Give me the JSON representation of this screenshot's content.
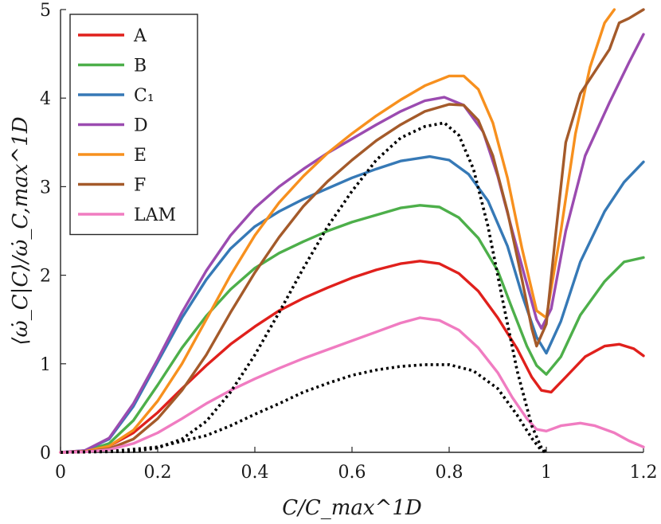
{
  "chart_data": {
    "type": "line",
    "title": "",
    "xlabel": "C/C_max^1D",
    "ylabel": "⟨ω̇_C|C⟩/ω̇_C,max^1D",
    "xlim": [
      0,
      1.2
    ],
    "ylim": [
      0,
      5
    ],
    "x_ticks": [
      "0",
      "0.2",
      "0.4",
      "0.6",
      "0.8",
      "1",
      "1.2"
    ],
    "y_ticks": [
      "0",
      "1",
      "2",
      "3",
      "4",
      "5"
    ],
    "legend_position": "top-left",
    "series": [
      {
        "name": "A",
        "color": "#e0201c",
        "style": "solid",
        "points": [
          [
            0,
            0
          ],
          [
            0.05,
            0.01
          ],
          [
            0.1,
            0.07
          ],
          [
            0.15,
            0.22
          ],
          [
            0.2,
            0.45
          ],
          [
            0.25,
            0.72
          ],
          [
            0.3,
            0.98
          ],
          [
            0.35,
            1.22
          ],
          [
            0.4,
            1.42
          ],
          [
            0.45,
            1.6
          ],
          [
            0.5,
            1.74
          ],
          [
            0.55,
            1.86
          ],
          [
            0.6,
            1.97
          ],
          [
            0.65,
            2.06
          ],
          [
            0.7,
            2.13
          ],
          [
            0.74,
            2.16
          ],
          [
            0.78,
            2.13
          ],
          [
            0.82,
            2.02
          ],
          [
            0.86,
            1.82
          ],
          [
            0.9,
            1.52
          ],
          [
            0.94,
            1.17
          ],
          [
            0.97,
            0.85
          ],
          [
            0.99,
            0.7
          ],
          [
            1.01,
            0.68
          ],
          [
            1.04,
            0.85
          ],
          [
            1.08,
            1.08
          ],
          [
            1.12,
            1.2
          ],
          [
            1.15,
            1.22
          ],
          [
            1.18,
            1.17
          ],
          [
            1.2,
            1.09
          ]
        ]
      },
      {
        "name": "B",
        "color": "#4daf4a",
        "style": "solid",
        "points": [
          [
            0,
            0
          ],
          [
            0.05,
            0.01
          ],
          [
            0.1,
            0.1
          ],
          [
            0.15,
            0.36
          ],
          [
            0.2,
            0.76
          ],
          [
            0.25,
            1.18
          ],
          [
            0.3,
            1.54
          ],
          [
            0.35,
            1.84
          ],
          [
            0.4,
            2.08
          ],
          [
            0.45,
            2.25
          ],
          [
            0.5,
            2.38
          ],
          [
            0.55,
            2.5
          ],
          [
            0.6,
            2.6
          ],
          [
            0.65,
            2.68
          ],
          [
            0.7,
            2.76
          ],
          [
            0.74,
            2.79
          ],
          [
            0.78,
            2.77
          ],
          [
            0.82,
            2.65
          ],
          [
            0.86,
            2.42
          ],
          [
            0.9,
            2.05
          ],
          [
            0.93,
            1.62
          ],
          [
            0.96,
            1.2
          ],
          [
            0.98,
            0.98
          ],
          [
            1.0,
            0.88
          ],
          [
            1.03,
            1.08
          ],
          [
            1.07,
            1.55
          ],
          [
            1.12,
            1.93
          ],
          [
            1.16,
            2.15
          ],
          [
            1.2,
            2.2
          ]
        ]
      },
      {
        "name": "C₁",
        "color": "#3679b6",
        "style": "solid",
        "points": [
          [
            0,
            0
          ],
          [
            0.05,
            0.02
          ],
          [
            0.1,
            0.15
          ],
          [
            0.15,
            0.52
          ],
          [
            0.2,
            1.02
          ],
          [
            0.25,
            1.52
          ],
          [
            0.3,
            1.95
          ],
          [
            0.35,
            2.3
          ],
          [
            0.4,
            2.55
          ],
          [
            0.45,
            2.72
          ],
          [
            0.5,
            2.86
          ],
          [
            0.55,
            2.98
          ],
          [
            0.6,
            3.1
          ],
          [
            0.65,
            3.2
          ],
          [
            0.7,
            3.29
          ],
          [
            0.76,
            3.34
          ],
          [
            0.8,
            3.3
          ],
          [
            0.84,
            3.14
          ],
          [
            0.88,
            2.84
          ],
          [
            0.92,
            2.33
          ],
          [
            0.95,
            1.78
          ],
          [
            0.98,
            1.3
          ],
          [
            1.0,
            1.12
          ],
          [
            1.03,
            1.48
          ],
          [
            1.07,
            2.15
          ],
          [
            1.12,
            2.72
          ],
          [
            1.16,
            3.05
          ],
          [
            1.2,
            3.28
          ]
        ]
      },
      {
        "name": "D",
        "color": "#9b4bb0",
        "style": "solid",
        "points": [
          [
            0,
            0
          ],
          [
            0.05,
            0.02
          ],
          [
            0.1,
            0.16
          ],
          [
            0.15,
            0.55
          ],
          [
            0.2,
            1.05
          ],
          [
            0.25,
            1.58
          ],
          [
            0.3,
            2.05
          ],
          [
            0.35,
            2.45
          ],
          [
            0.4,
            2.76
          ],
          [
            0.45,
            3.0
          ],
          [
            0.5,
            3.2
          ],
          [
            0.55,
            3.38
          ],
          [
            0.6,
            3.54
          ],
          [
            0.65,
            3.7
          ],
          [
            0.7,
            3.85
          ],
          [
            0.75,
            3.97
          ],
          [
            0.79,
            4.01
          ],
          [
            0.83,
            3.92
          ],
          [
            0.87,
            3.62
          ],
          [
            0.9,
            3.12
          ],
          [
            0.93,
            2.5
          ],
          [
            0.96,
            1.9
          ],
          [
            0.98,
            1.5
          ],
          [
            0.99,
            1.4
          ],
          [
            1.01,
            1.62
          ],
          [
            1.04,
            2.5
          ],
          [
            1.08,
            3.35
          ],
          [
            1.13,
            3.95
          ],
          [
            1.17,
            4.4
          ],
          [
            1.2,
            4.72
          ]
        ]
      },
      {
        "name": "E",
        "color": "#f7901e",
        "style": "solid",
        "points": [
          [
            0,
            0
          ],
          [
            0.05,
            0.01
          ],
          [
            0.1,
            0.07
          ],
          [
            0.15,
            0.25
          ],
          [
            0.2,
            0.58
          ],
          [
            0.25,
            1.0
          ],
          [
            0.3,
            1.5
          ],
          [
            0.35,
            2.0
          ],
          [
            0.4,
            2.45
          ],
          [
            0.45,
            2.82
          ],
          [
            0.5,
            3.12
          ],
          [
            0.55,
            3.38
          ],
          [
            0.6,
            3.6
          ],
          [
            0.65,
            3.8
          ],
          [
            0.7,
            3.98
          ],
          [
            0.75,
            4.14
          ],
          [
            0.8,
            4.25
          ],
          [
            0.83,
            4.25
          ],
          [
            0.86,
            4.1
          ],
          [
            0.89,
            3.72
          ],
          [
            0.92,
            3.1
          ],
          [
            0.95,
            2.3
          ],
          [
            0.98,
            1.6
          ],
          [
            1.0,
            1.52
          ],
          [
            1.03,
            2.5
          ],
          [
            1.06,
            3.6
          ],
          [
            1.09,
            4.35
          ],
          [
            1.12,
            4.85
          ],
          [
            1.14,
            5.0
          ]
        ]
      },
      {
        "name": "F",
        "color": "#a45a2a",
        "style": "solid",
        "points": [
          [
            0,
            0
          ],
          [
            0.05,
            0.005
          ],
          [
            0.1,
            0.04
          ],
          [
            0.15,
            0.15
          ],
          [
            0.2,
            0.38
          ],
          [
            0.25,
            0.7
          ],
          [
            0.3,
            1.1
          ],
          [
            0.35,
            1.58
          ],
          [
            0.4,
            2.03
          ],
          [
            0.45,
            2.43
          ],
          [
            0.5,
            2.78
          ],
          [
            0.55,
            3.06
          ],
          [
            0.6,
            3.3
          ],
          [
            0.65,
            3.52
          ],
          [
            0.7,
            3.7
          ],
          [
            0.75,
            3.85
          ],
          [
            0.8,
            3.93
          ],
          [
            0.83,
            3.92
          ],
          [
            0.86,
            3.75
          ],
          [
            0.89,
            3.35
          ],
          [
            0.92,
            2.72
          ],
          [
            0.95,
            1.95
          ],
          [
            0.97,
            1.4
          ],
          [
            0.98,
            1.2
          ],
          [
            1.0,
            1.45
          ],
          [
            1.02,
            2.5
          ],
          [
            1.04,
            3.5
          ],
          [
            1.07,
            4.05
          ],
          [
            1.1,
            4.3
          ],
          [
            1.13,
            4.55
          ],
          [
            1.15,
            4.85
          ],
          [
            1.17,
            4.9
          ],
          [
            1.2,
            5.0
          ]
        ]
      },
      {
        "name": "LAM",
        "color": "#f07cc1",
        "style": "solid",
        "points": [
          [
            0,
            0
          ],
          [
            0.05,
            0.005
          ],
          [
            0.1,
            0.03
          ],
          [
            0.15,
            0.1
          ],
          [
            0.2,
            0.22
          ],
          [
            0.25,
            0.38
          ],
          [
            0.3,
            0.55
          ],
          [
            0.35,
            0.7
          ],
          [
            0.4,
            0.83
          ],
          [
            0.45,
            0.95
          ],
          [
            0.5,
            1.06
          ],
          [
            0.55,
            1.16
          ],
          [
            0.6,
            1.26
          ],
          [
            0.65,
            1.36
          ],
          [
            0.7,
            1.46
          ],
          [
            0.74,
            1.52
          ],
          [
            0.78,
            1.49
          ],
          [
            0.82,
            1.38
          ],
          [
            0.86,
            1.18
          ],
          [
            0.9,
            0.9
          ],
          [
            0.93,
            0.62
          ],
          [
            0.96,
            0.38
          ],
          [
            0.98,
            0.26
          ],
          [
            1.0,
            0.24
          ],
          [
            1.03,
            0.3
          ],
          [
            1.07,
            0.33
          ],
          [
            1.1,
            0.3
          ],
          [
            1.14,
            0.22
          ],
          [
            1.17,
            0.13
          ],
          [
            1.2,
            0.06
          ]
        ]
      },
      {
        "name": "",
        "color": "#000000",
        "style": "dotted",
        "in_legend": false,
        "points": [
          [
            0,
            0
          ],
          [
            0.1,
            0.01
          ],
          [
            0.2,
            0.06
          ],
          [
            0.3,
            0.19
          ],
          [
            0.35,
            0.3
          ],
          [
            0.4,
            0.43
          ],
          [
            0.45,
            0.55
          ],
          [
            0.5,
            0.68
          ],
          [
            0.55,
            0.78
          ],
          [
            0.6,
            0.87
          ],
          [
            0.65,
            0.93
          ],
          [
            0.7,
            0.97
          ],
          [
            0.75,
            0.99
          ],
          [
            0.8,
            0.99
          ],
          [
            0.85,
            0.92
          ],
          [
            0.9,
            0.72
          ],
          [
            0.94,
            0.42
          ],
          [
            0.97,
            0.16
          ],
          [
            0.99,
            0.02
          ],
          [
            1.0,
            0
          ]
        ]
      },
      {
        "name": "",
        "color": "#000000",
        "style": "dotted",
        "in_legend": false,
        "points": [
          [
            0,
            0
          ],
          [
            0.15,
            0.01
          ],
          [
            0.2,
            0.05
          ],
          [
            0.25,
            0.15
          ],
          [
            0.3,
            0.35
          ],
          [
            0.35,
            0.68
          ],
          [
            0.4,
            1.1
          ],
          [
            0.45,
            1.58
          ],
          [
            0.5,
            2.08
          ],
          [
            0.55,
            2.55
          ],
          [
            0.6,
            2.95
          ],
          [
            0.65,
            3.3
          ],
          [
            0.7,
            3.55
          ],
          [
            0.75,
            3.68
          ],
          [
            0.79,
            3.72
          ],
          [
            0.82,
            3.58
          ],
          [
            0.85,
            3.2
          ],
          [
            0.88,
            2.55
          ],
          [
            0.91,
            1.72
          ],
          [
            0.94,
            0.92
          ],
          [
            0.97,
            0.3
          ],
          [
            0.99,
            0.05
          ],
          [
            1.0,
            0
          ]
        ]
      }
    ]
  }
}
